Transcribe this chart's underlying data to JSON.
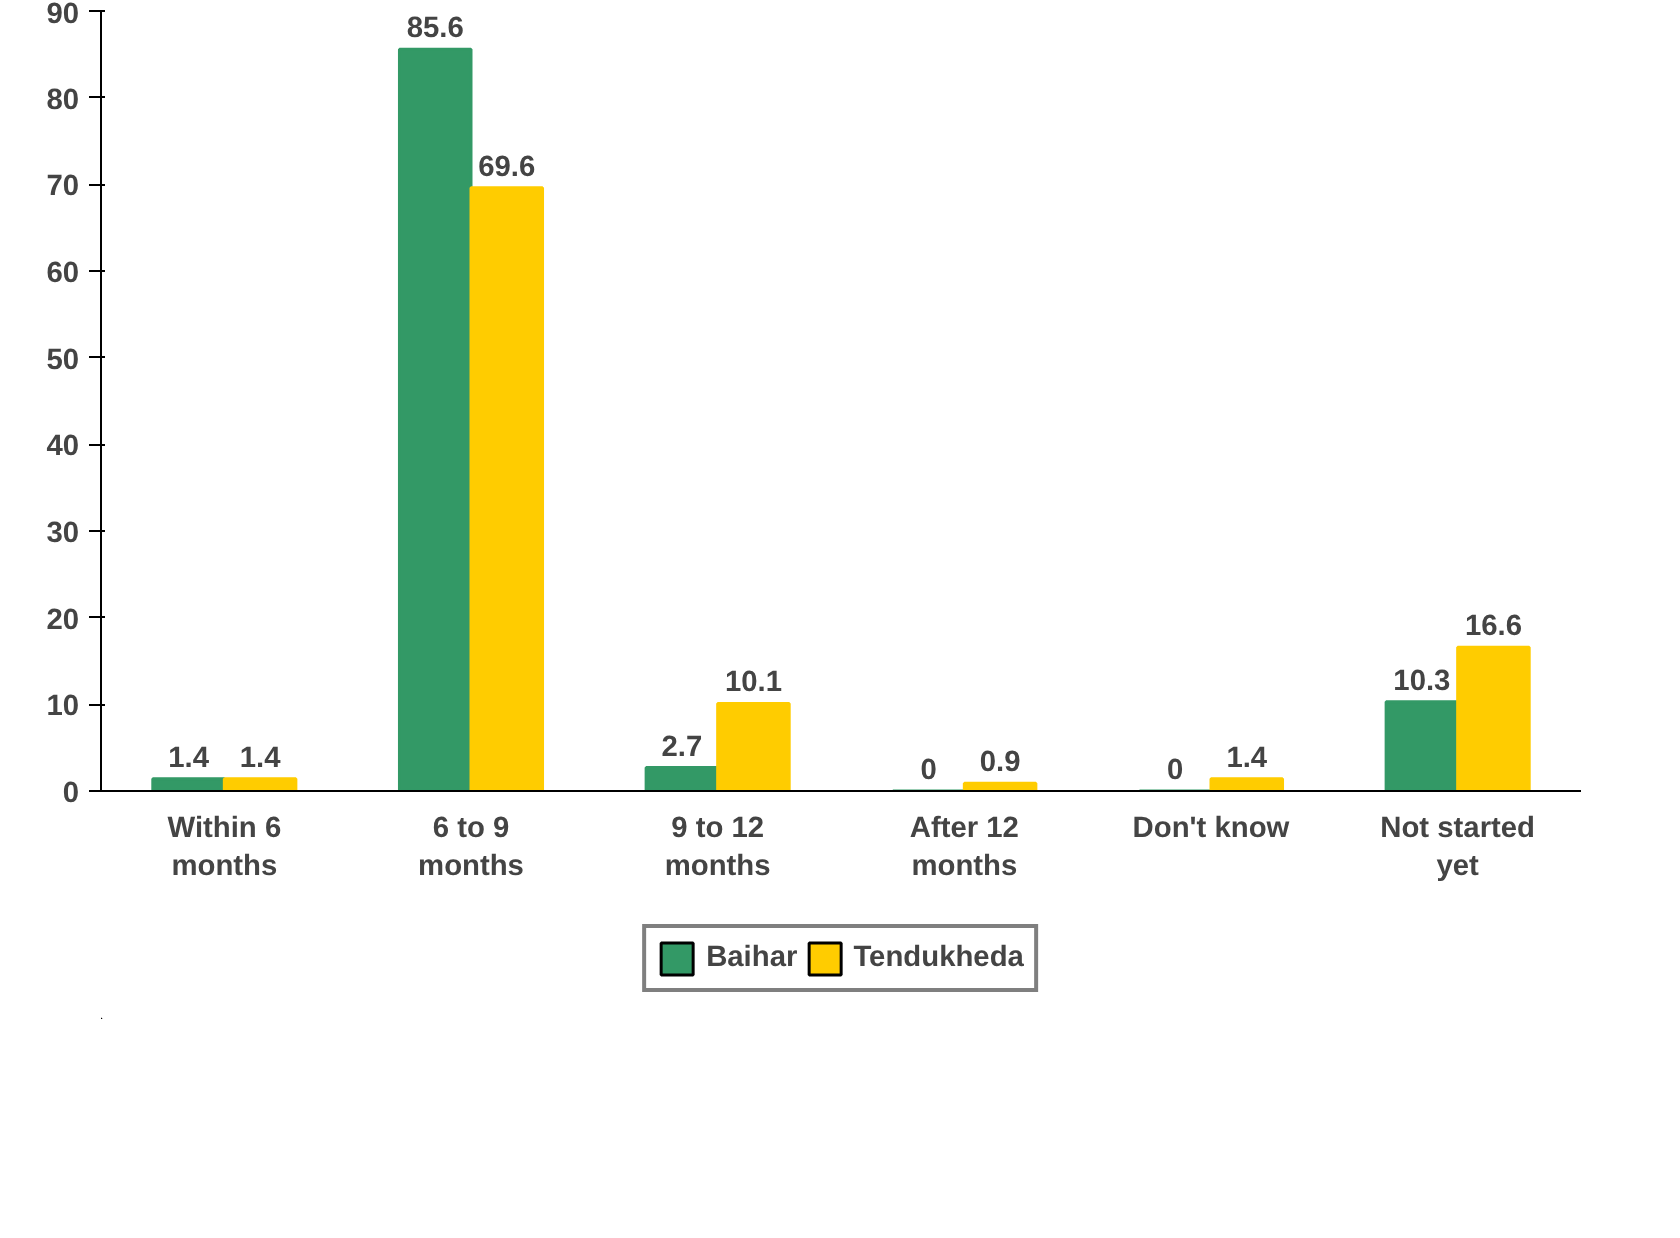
{
  "chart_data": {
    "type": "bar",
    "categories": [
      "Within 6 months",
      "6 to 9 months",
      "9 to 12 months",
      "After 12 months",
      "Don't know",
      "Not started yet"
    ],
    "series": [
      {
        "name": "Baihar",
        "color": "#339966",
        "values": [
          1.4,
          85.6,
          2.7,
          0,
          0,
          10.3
        ]
      },
      {
        "name": "Tendukheda",
        "color": "#ffcc00",
        "values": [
          1.4,
          69.6,
          10.1,
          0.9,
          1.4,
          16.6
        ]
      }
    ],
    "ylim": [
      0,
      90
    ],
    "yticks": [
      0,
      10,
      20,
      30,
      40,
      50,
      60,
      70,
      80,
      90
    ],
    "data_labels": true,
    "legend": "bottom",
    "grid": false
  }
}
